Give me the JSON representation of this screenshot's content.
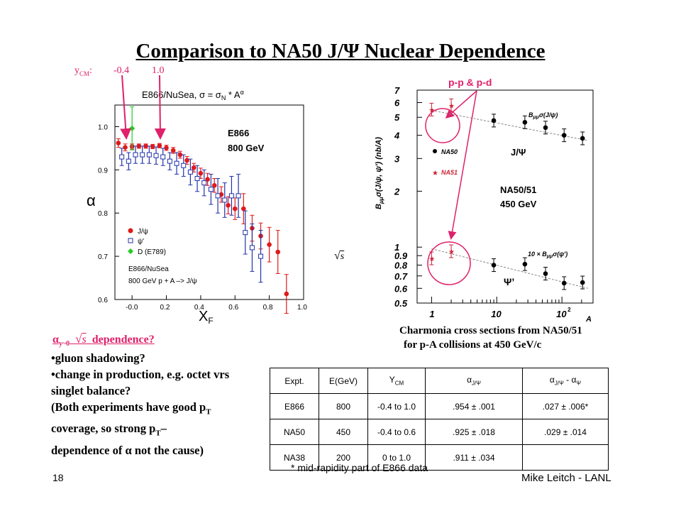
{
  "title": "Comparison to NA50 J/Ψ Nuclear Dependence",
  "ycm_label": "y",
  "ycm_sub": "CM",
  "ycm_colon": ":",
  "ycm_left": "-0.4",
  "ycm_right": "1.0",
  "sqrt_s": "s",
  "left_plot": {
    "title": "E866/NuSea, σ = σ",
    "title_sub": "N",
    "title_tail": " * A",
    "title_sup": "α",
    "annotation_line1": "E866",
    "annotation_line2": "800 GeV",
    "ylabel": "α",
    "xlabel": "X",
    "xlabel_sub": "F",
    "legend": [
      "J/ψ",
      "ψ'",
      "D (E789)"
    ],
    "legend_note1": "E866/NuSea",
    "legend_note2": "800 GeV p + A –> J/ψ",
    "xticks": [
      "-0.0",
      "0.2",
      "0.4",
      "0.6",
      "0.8",
      "1.0"
    ],
    "yticks": [
      "0.6",
      "0.7",
      "0.8",
      "0.9",
      "1.0"
    ]
  },
  "right_plot": {
    "top_label": "p-p & p-d",
    "ylabel": "B",
    "ylabel_sub": "μμ",
    "ylabel_tail": "σ(J/ψ, ψ') (nb/A)",
    "curve_label_top": "B",
    "curve_label_top_sub": "μμ",
    "curve_label_top_tail": "σ(J/ψ)",
    "curve_label_bottom": "10 × B",
    "curve_label_bottom_sub": "μμ",
    "curve_label_bottom_tail": "σ(ψ')",
    "legend": [
      "NA50",
      "NA51"
    ],
    "jpsi_label": "J/Ψ",
    "psiprime_label": "Ψ’",
    "na_label1": "NA50/51",
    "na_label2": "450 GeV",
    "xlabel": "A",
    "yticks": [
      "7",
      "6",
      "5",
      "4",
      "3",
      "2",
      "1",
      "0.9",
      "0.8",
      "0.7",
      "0.6",
      "0.5"
    ],
    "xticks": [
      "1",
      "10",
      "10"
    ],
    "xtick_sup": "2"
  },
  "caption1": "Charmonia cross sections from NA50/51",
  "caption2": "for p-A collisions at 450 GeV/c",
  "question": {
    "prefix": "α",
    "sub": "y~0",
    "tail": "dependence?"
  },
  "bullets": [
    "gluon  shadowing?",
    "change in production, e.g. octet vrs singlet balance?"
  ],
  "paren": {
    "l1": "(Both experiments have good p",
    "l1_sub": "T",
    "l2a": "coverage, so strong p",
    "l2_sub": "T",
    "l2b": "–",
    "l3": "dependence of α not the cause)"
  },
  "table": {
    "headers": [
      "Expt.",
      "E(GeV)",
      "Y",
      "α",
      "α",
      "- α"
    ],
    "header_subs": [
      "",
      "",
      "CM",
      "J/Ψ",
      "J/Ψ",
      "Ψ"
    ],
    "rows": [
      [
        "E866",
        "800",
        "-0.4 to 1.0",
        ".954 ±  .001",
        ".027 ± .006*"
      ],
      [
        "NA50",
        "450",
        "-0.4 to 0.6",
        ".925 ± .018",
        ".029 ± .014"
      ],
      [
        "NA38",
        "200",
        "0 to 1.0",
        ".911 ± .034",
        ""
      ]
    ]
  },
  "footnote": "* mid-rapidity part of E866 data",
  "page_number": "18",
  "author": "Mike Leitch - LANL",
  "chart_data": [
    {
      "type": "scatter",
      "title": "E866/NuSea, σ = σN * A^α",
      "xlabel": "XF",
      "ylabel": "α",
      "xlim": [
        -0.1,
        1.0
      ],
      "ylim": [
        0.6,
        1.05
      ],
      "series": [
        {
          "name": "J/ψ",
          "x": [
            -0.08,
            -0.04,
            0.0,
            0.04,
            0.08,
            0.12,
            0.16,
            0.2,
            0.24,
            0.28,
            0.32,
            0.36,
            0.4,
            0.44,
            0.48,
            0.52,
            0.56,
            0.6,
            0.65,
            0.7,
            0.75,
            0.8,
            0.85,
            0.9
          ],
          "y": [
            0.962,
            0.952,
            0.954,
            0.955,
            0.955,
            0.954,
            0.956,
            0.951,
            0.945,
            0.935,
            0.922,
            0.905,
            0.892,
            0.878,
            0.864,
            0.843,
            0.818,
            0.81,
            0.81,
            0.765,
            0.747,
            0.727,
            0.71,
            0.613
          ],
          "err": [
            0.01,
            0.008,
            0.006,
            0.005,
            0.005,
            0.005,
            0.005,
            0.006,
            0.007,
            0.008,
            0.009,
            0.01,
            0.012,
            0.014,
            0.016,
            0.018,
            0.02,
            0.025,
            0.035,
            0.03,
            0.03,
            0.04,
            0.05,
            0.045
          ]
        },
        {
          "name": "ψ'",
          "x": [
            -0.06,
            -0.02,
            0.02,
            0.06,
            0.1,
            0.14,
            0.18,
            0.22,
            0.26,
            0.3,
            0.34,
            0.38,
            0.42,
            0.46,
            0.5,
            0.54,
            0.58,
            0.62,
            0.66,
            0.7,
            0.75
          ],
          "y": [
            0.93,
            0.92,
            0.935,
            0.935,
            0.935,
            0.933,
            0.93,
            0.92,
            0.915,
            0.91,
            0.895,
            0.88,
            0.87,
            0.855,
            0.84,
            0.83,
            0.84,
            0.84,
            0.755,
            0.72,
            0.7
          ],
          "err": [
            0.02,
            0.02,
            0.02,
            0.02,
            0.02,
            0.02,
            0.02,
            0.02,
            0.025,
            0.025,
            0.03,
            0.03,
            0.03,
            0.035,
            0.04,
            0.04,
            0.045,
            0.05,
            0.05,
            0.055,
            0.06
          ]
        },
        {
          "name": "D (E789)",
          "x": [
            0.0
          ],
          "y": [
            0.996
          ],
          "err": [
            0.05
          ]
        }
      ]
    },
    {
      "type": "scatter",
      "xlabel": "A",
      "ylabel": "Bμμσ(J/ψ, ψ') (nb/A)",
      "xscale": "log",
      "yscale": "log",
      "xlim": [
        0.6,
        300
      ],
      "ylim": [
        0.5,
        7
      ],
      "series": [
        {
          "name": "NA50",
          "x": [
            9,
            27,
            56,
            108,
            207
          ],
          "y": [
            4.8,
            4.7,
            4.4,
            4.0,
            3.85
          ]
        },
        {
          "name": "NA51",
          "x": [
            1,
            2
          ],
          "y": [
            5.5,
            5.8
          ]
        },
        {
          "name": "NA50",
          "x": [
            9,
            27,
            56,
            108,
            207
          ],
          "y": [
            0.8,
            0.81,
            0.72,
            0.64,
            0.645
          ]
        },
        {
          "name": "NA51",
          "x": [
            1,
            2
          ],
          "y": [
            0.87,
            0.95
          ]
        }
      ]
    }
  ]
}
